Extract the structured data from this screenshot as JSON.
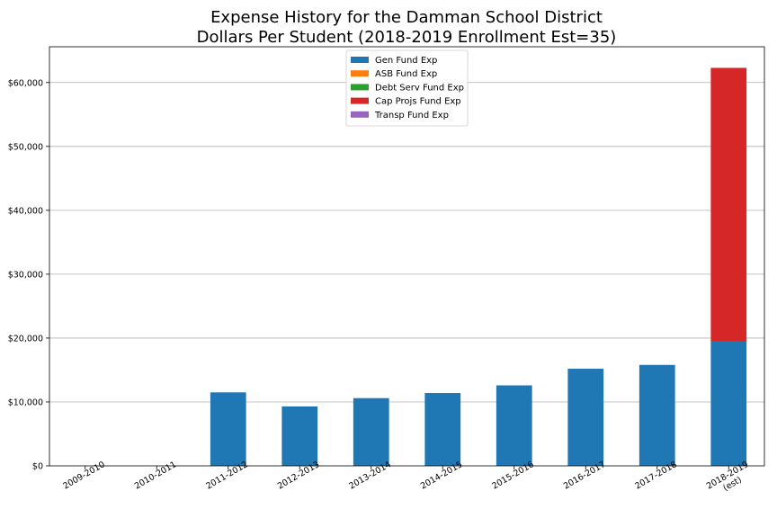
{
  "chart_data": {
    "type": "bar",
    "stacked": true,
    "title_lines": [
      "Expense History for the Damman School District",
      "Dollars Per Student (2018-2019 Enrollment Est=35)"
    ],
    "categories": [
      [
        "2009-2010"
      ],
      [
        "2010-2011"
      ],
      [
        "2011-2012"
      ],
      [
        "2012-2013"
      ],
      [
        "2013-2014"
      ],
      [
        "2014-2015"
      ],
      [
        "2015-2016"
      ],
      [
        "2016-2017"
      ],
      [
        "2017-2018"
      ],
      [
        "2018-2019",
        "(est)"
      ]
    ],
    "series": [
      {
        "name": "Gen Fund Exp",
        "color": "#1f77b4",
        "values": [
          0,
          0,
          11500,
          9300,
          10600,
          11400,
          12600,
          15200,
          15800,
          19500
        ]
      },
      {
        "name": "ASB Fund Exp",
        "color": "#ff7f0e",
        "values": [
          0,
          0,
          0,
          0,
          0,
          0,
          0,
          0,
          0,
          0
        ]
      },
      {
        "name": "Debt Serv Fund Exp",
        "color": "#2ca02c",
        "values": [
          0,
          0,
          0,
          0,
          0,
          0,
          0,
          0,
          0,
          0
        ]
      },
      {
        "name": "Cap Projs Fund Exp",
        "color": "#d62728",
        "values": [
          0,
          0,
          0,
          0,
          0,
          0,
          0,
          0,
          0,
          42800
        ]
      },
      {
        "name": "Transp Fund Exp",
        "color": "#9467bd",
        "values": [
          0,
          0,
          0,
          0,
          0,
          0,
          0,
          0,
          0,
          0
        ]
      }
    ],
    "ylim": [
      0,
      65600
    ],
    "yticks": [
      0,
      10000,
      20000,
      30000,
      40000,
      50000,
      60000
    ],
    "ytick_labels": [
      "$0",
      "$10,000",
      "$20,000",
      "$30,000",
      "$40,000",
      "$50,000",
      "$60,000"
    ],
    "grid": "horizontal",
    "legend_position": "top-center"
  }
}
